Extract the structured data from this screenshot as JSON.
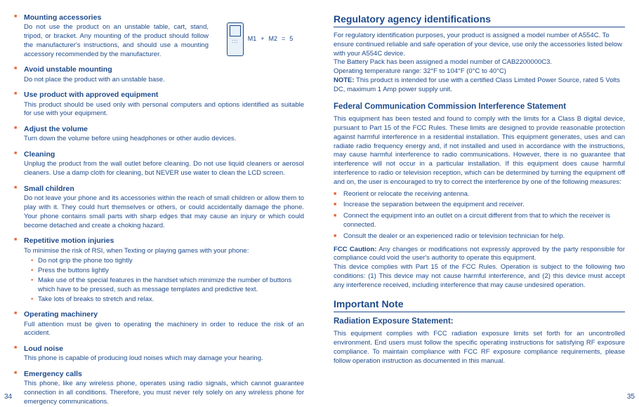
{
  "left": {
    "pageNum": "34",
    "diagram": {
      "m1": "M1",
      "plus": "+",
      "m2": "M2",
      "eq": "=",
      "five": "5"
    },
    "sections": [
      {
        "title": "Mounting accessories",
        "body": "Do not use the product on an unstable table, cart, stand, tripod, or bracket. Any mounting of the product should follow the manufacturer's instructions, and should use a mounting accessory recommended by the manufacturer."
      },
      {
        "title": "Avoid unstable mounting",
        "body": "Do not place the product with an unstable base."
      },
      {
        "title": "Use product with approved equipment",
        "body": "This product should be used only with personal computers and options identified as suitable for use with your equipment."
      },
      {
        "title": "Adjust the volume",
        "body": "Turn down the volume before using headphones or other audio devices."
      },
      {
        "title": "Cleaning",
        "body": "Unplug the product from the wall outlet before cleaning. Do not use liquid cleaners or aerosol cleaners. Use a damp cloth for cleaning, but NEVER use water to clean the LCD screen."
      },
      {
        "title": "Small children",
        "body": "Do not leave your phone and its accessories within the reach of small children or allow them to play with it. They could hurt themselves or others, or could accidentally damage the phone. Your phone contains small parts with sharp edges that may cause an injury or which could become detached and create a choking hazard."
      },
      {
        "title": "Repetitive motion injuries",
        "body": "To minimise the risk of RSI, when Texting or playing games with your phone:",
        "sub": [
          "Do not grip the phone too tightly",
          "Press the buttons lightly",
          "Make use of the special features in the handset which minimize the number of buttons which have to be pressed, such as message templates and predictive text.",
          "Take lots of breaks to stretch and relax."
        ]
      },
      {
        "title": "Operating machinery",
        "body": "Full attention must be given to operating the machinery in order to reduce the risk of an accident."
      },
      {
        "title": "Loud noise",
        "body": "This phone is capable of producing loud noises which may damage your hearing."
      },
      {
        "title": "Emergency calls",
        "body": "This phone, like any wireless phone, operates using radio signals, which cannot guarantee connection in all conditions. Therefore, you must never rely solely on any wireless phone for emergency communications."
      }
    ]
  },
  "right": {
    "pageNum": "35",
    "h1": "Regulatory agency identifications",
    "reg": {
      "p1": "For regulatory identification purposes, your product is assigned a model number of A554C. To ensure continued reliable and safe operation of your device, use only the accessories listed below with your A554C device.",
      "p2": "The Battery Pack has been assigned a model number of CAB2200000C3.",
      "p3": "Operating temperature range: 32°F to 104°F (0°C to 40°C)",
      "noteLabel": "NOTE:",
      "noteBody": "This product is intended for use with a certified Class Limited Power Source, rated 5 Volts DC, maximum 1 Amp power supply unit."
    },
    "fccTitle": "Federal Communication Commission Interference Statement",
    "fccBody": "This equipment has been tested and found to comply with the limits for a Class B digital device, pursuant to Part 15 of the FCC Rules. These limits are designed to provide reasonable protection against harmful interference in a residential installation. This equipment generates, uses and can radiate radio frequency energy and, if not installed and used in accordance with the instructions, may cause harmful interference to radio communications. However, there is no guarantee that interference will not occur in a particular installation. If this equipment does cause harmful interference to radio or television reception, which can be determined by turning the equipment off and on, the user is encouraged to try to correct the interference by one of the following measures:",
    "measures": [
      "Reorient or relocate the receiving antenna.",
      "Increase the separation between the equipment and receiver.",
      "Connect the equipment into an outlet on a circuit different from that to which the receiver is connected.",
      "Consult the dealer or an experienced radio or television technician for help."
    ],
    "fccCautionLabel": "FCC Caution:",
    "fccCaution": " Any changes or modifications not expressly approved by the party responsible for compliance could void the user's authority to operate this equipment.",
    "fccPart15": "This device complies with Part 15 of the FCC Rules. Operation is subject to the following two conditions: (1) This device may not cause harmful interference, and (2) this device must accept any interference received, including interference that may cause undesired operation.",
    "impTitle": "Important Note",
    "radTitle": "Radiation Exposure Statement:",
    "radBody": "This equipment complies with FCC radiation exposure limits set forth for an uncontrolled environment. End users must follow the specific operating instructions for satisfying RF exposure compliance. To maintain compliance with FCC RF exposure compliance requirements, please follow operation instruction as documented in this manual."
  }
}
